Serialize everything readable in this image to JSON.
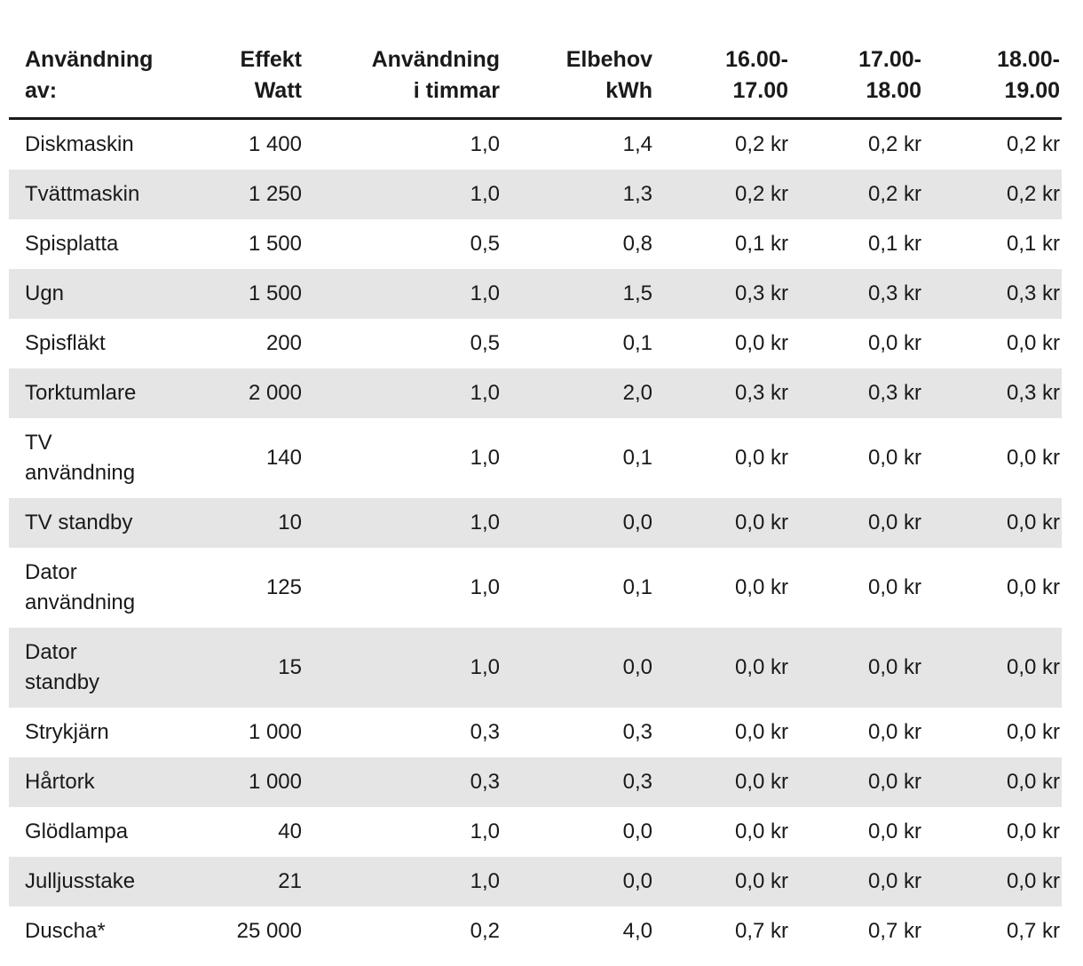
{
  "chart_data": {
    "type": "table",
    "columns": [
      {
        "lines": [
          "Användning",
          "av:"
        ],
        "align": "left"
      },
      {
        "lines": [
          "Effekt",
          "Watt"
        ],
        "align": "right"
      },
      {
        "lines": [
          "Användning",
          "i timmar"
        ],
        "align": "right"
      },
      {
        "lines": [
          "Elbehov",
          "kWh"
        ],
        "align": "right"
      },
      {
        "lines": [
          "16.00-",
          "17.00"
        ],
        "align": "right"
      },
      {
        "lines": [
          "17.00-",
          "18.00"
        ],
        "align": "right"
      },
      {
        "lines": [
          "18.00-",
          "19.00"
        ],
        "align": "right"
      }
    ],
    "rows": [
      {
        "cells": [
          "Diskmaskin",
          "1 400",
          "1,0",
          "1,4",
          "0,2 kr",
          "0,2 kr",
          "0,2 kr"
        ]
      },
      {
        "cells": [
          "Tvättmaskin",
          "1 250",
          "1,0",
          "1,3",
          "0,2 kr",
          "0,2 kr",
          "0,2 kr"
        ]
      },
      {
        "cells": [
          "Spisplatta",
          "1 500",
          "0,5",
          "0,8",
          "0,1 kr",
          "0,1 kr",
          "0,1 kr"
        ]
      },
      {
        "cells": [
          "Ugn",
          "1 500",
          "1,0",
          "1,5",
          "0,3 kr",
          "0,3 kr",
          "0,3 kr"
        ]
      },
      {
        "cells": [
          "Spisfläkt",
          "200",
          "0,5",
          "0,1",
          "0,0 kr",
          "0,0 kr",
          "0,0 kr"
        ]
      },
      {
        "cells": [
          "Torktumlare",
          "2 000",
          "1,0",
          "2,0",
          "0,3 kr",
          "0,3 kr",
          "0,3 kr"
        ]
      },
      {
        "cells": [
          [
            "TV",
            "användning"
          ],
          "140",
          "1,0",
          "0,1",
          "0,0 kr",
          "0,0 kr",
          "0,0 kr"
        ]
      },
      {
        "cells": [
          "TV standby",
          "10",
          "1,0",
          "0,0",
          "0,0 kr",
          "0,0 kr",
          "0,0 kr"
        ]
      },
      {
        "cells": [
          [
            "Dator",
            "användning"
          ],
          "125",
          "1,0",
          "0,1",
          "0,0 kr",
          "0,0 kr",
          "0,0 kr"
        ]
      },
      {
        "cells": [
          [
            "Dator",
            "standby"
          ],
          "15",
          "1,0",
          "0,0",
          "0,0 kr",
          "0,0 kr",
          "0,0 kr"
        ]
      },
      {
        "cells": [
          "Strykjärn",
          "1 000",
          "0,3",
          "0,3",
          "0,0 kr",
          "0,0 kr",
          "0,0 kr"
        ]
      },
      {
        "cells": [
          "Hårtork",
          "1 000",
          "0,3",
          "0,3",
          "0,0 kr",
          "0,0 kr",
          "0,0 kr"
        ]
      },
      {
        "cells": [
          "Glödlampa",
          "40",
          "1,0",
          "0,0",
          "0,0 kr",
          "0,0 kr",
          "0,0 kr"
        ]
      },
      {
        "cells": [
          "Julljusstake",
          "21",
          "1,0",
          "0,0",
          "0,0 kr",
          "0,0 kr",
          "0,0 kr"
        ]
      },
      {
        "cells": [
          "Duscha*",
          "25 000",
          "0,2",
          "4,0",
          "0,7 kr",
          "0,7 kr",
          "0,7 kr"
        ]
      }
    ],
    "colors": {
      "stripe": "#e5e5e5",
      "text": "#1a1a1a",
      "header_rule": "#1a1a1a"
    },
    "layout": {
      "stripe_pattern": "odd-rows-shaded",
      "grid": "none",
      "header_divider": "thick-black-rule"
    }
  }
}
